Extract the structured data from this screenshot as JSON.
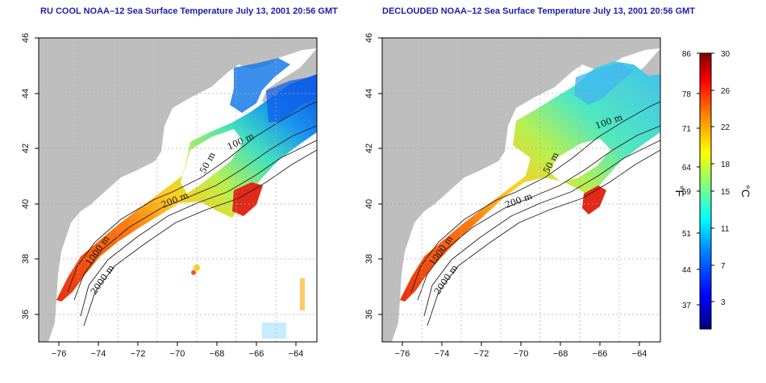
{
  "panels": [
    {
      "title": "RU COOL NOAA–12 Sea Surface Temperature July 13, 2001 20:56 GMT",
      "depth_labels": [
        "50 m",
        "100 m",
        "200 m",
        "1000 m",
        "2000 m"
      ]
    },
    {
      "title": "DECLOUDED NOAA–12 Sea Surface Temperature July 13, 2001 20:56 GMT",
      "depth_labels": [
        "50 m",
        "100 m",
        "200 m",
        "1000 m",
        "2000 m"
      ]
    }
  ],
  "axes": {
    "lon_ticks": [
      "−76",
      "−74",
      "−72",
      "−70",
      "−68",
      "−66",
      "−64"
    ],
    "lat_ticks": [
      "46",
      "44",
      "42",
      "40",
      "38",
      "36"
    ],
    "lon_range": [
      -77,
      -63
    ],
    "lat_range": [
      35,
      46
    ]
  },
  "colorbar": {
    "fahrenheit_label": "°F",
    "celsius_label": "°C",
    "fahrenheit_ticks": [
      "86",
      "78",
      "71",
      "64",
      "59",
      "51",
      "44",
      "37"
    ],
    "celsius_ticks": [
      "30",
      "26",
      "22",
      "18",
      "15",
      "11",
      "7",
      "3"
    ],
    "colors": [
      "#00007f",
      "#0000ff",
      "#0080ff",
      "#00ffff",
      "#80ff80",
      "#ffff00",
      "#ff8000",
      "#ff0000",
      "#7f0000"
    ]
  },
  "colors": {
    "land": "#bebebe",
    "ocean": "#ffffff",
    "contour": "#222222",
    "title": "#1d1db0"
  }
}
